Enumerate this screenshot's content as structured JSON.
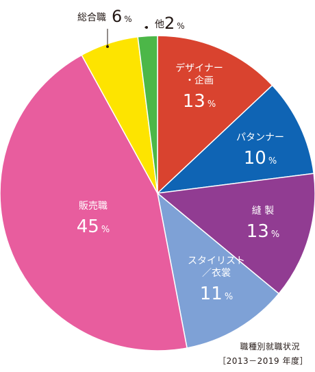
{
  "chart_data": {
    "type": "pie",
    "title": "職種別就職状況",
    "subtitle": "［2013－2019 年度］",
    "unit": "%",
    "start_angle_deg": 0,
    "direction": "clockwise",
    "slices": [
      {
        "name": "デザイナー・企画",
        "name_lines": [
          "デザイナー",
          "・企画"
        ],
        "value": 13,
        "color": "#d9432f",
        "label_position": "inside"
      },
      {
        "name": "パタンナー",
        "name_lines": [
          "パタンナー"
        ],
        "value": 10,
        "color": "#0f64b4",
        "label_position": "inside"
      },
      {
        "name": "縫製",
        "name_lines": [
          "縫 製"
        ],
        "value": 13,
        "color": "#913c92",
        "label_position": "inside"
      },
      {
        "name": "スタイリスト／衣裳",
        "name_lines": [
          "スタイリスト",
          "／衣裳"
        ],
        "value": 11,
        "color": "#7ea1d6",
        "label_position": "inside"
      },
      {
        "name": "販売職",
        "name_lines": [
          "販売職"
        ],
        "value": 45,
        "color": "#e85d9e",
        "label_position": "inside"
      },
      {
        "name": "総合職",
        "name_lines": [
          "総合職"
        ],
        "value": 6,
        "color": "#fde400",
        "label_position": "outside"
      },
      {
        "name": "他",
        "name_lines": [
          "他"
        ],
        "value": 2,
        "color": "#4cb748",
        "label_position": "outside"
      }
    ]
  }
}
